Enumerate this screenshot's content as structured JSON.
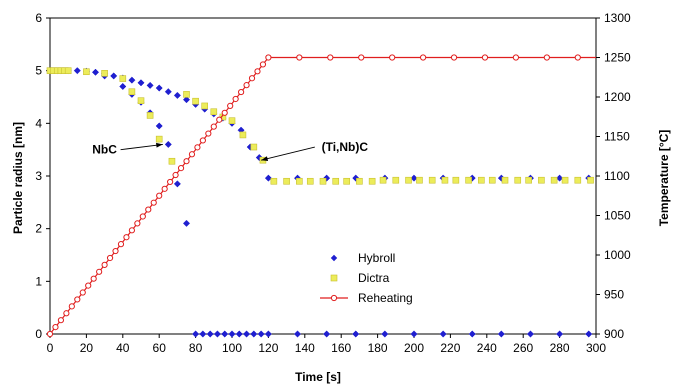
{
  "chart_data": {
    "type": "scatter",
    "title": "",
    "xlabel": "Time [s]",
    "ylabel": "Particle radius [nm]",
    "y2label": "Temperature [°C]",
    "xlim": [
      0,
      300
    ],
    "ylim": [
      0,
      6
    ],
    "y2lim": [
      900,
      1300
    ],
    "x_ticks": [
      "0",
      "20",
      "40",
      "60",
      "80",
      "100",
      "120",
      "140",
      "160",
      "180",
      "200",
      "220",
      "240",
      "260",
      "280",
      "300"
    ],
    "y_ticks": [
      "0",
      "1",
      "2",
      "3",
      "4",
      "5",
      "6"
    ],
    "y2_ticks": [
      "900",
      "950",
      "1000",
      "1050",
      "1100",
      "1150",
      "1200",
      "1250",
      "1300"
    ],
    "grid": "horizontal dashed",
    "legend_position": "lower-center",
    "series": [
      {
        "name": "Hybroll",
        "axis": "left",
        "marker": "diamond",
        "color": "#1f1fd0",
        "x": [
          0,
          2,
          4,
          6,
          8,
          10,
          15,
          20,
          25,
          30,
          35,
          40,
          45,
          50,
          55,
          60,
          65,
          70,
          75,
          80,
          85,
          90,
          95,
          100,
          105,
          110,
          115,
          120,
          136,
          152,
          168,
          184,
          200,
          216,
          232,
          248,
          264,
          280,
          296,
          30,
          40,
          45,
          50,
          55,
          60,
          65,
          70,
          75,
          80,
          84,
          88,
          92,
          96,
          100,
          104,
          108,
          112,
          116,
          120,
          136,
          152,
          168,
          184,
          200,
          216,
          232,
          248,
          264,
          280,
          296
        ],
        "y": [
          5.0,
          5.0,
          5.0,
          5.0,
          5.0,
          5.0,
          5.0,
          4.99,
          4.97,
          4.94,
          4.9,
          4.86,
          4.82,
          4.77,
          4.72,
          4.67,
          4.6,
          4.53,
          4.45,
          4.36,
          4.27,
          4.18,
          4.1,
          4.0,
          3.87,
          3.55,
          3.35,
          2.96,
          2.96,
          2.96,
          2.96,
          2.96,
          2.96,
          2.96,
          2.96,
          2.96,
          2.96,
          2.96,
          2.96,
          4.9,
          4.7,
          4.55,
          4.4,
          4.2,
          3.95,
          3.6,
          2.85,
          2.1,
          0,
          0,
          0,
          0,
          0,
          0,
          0,
          0,
          0,
          0,
          0,
          0,
          0,
          0,
          0,
          0,
          0,
          0,
          0,
          0,
          0,
          0
        ]
      },
      {
        "name": "Dictra",
        "axis": "left",
        "marker": "square",
        "color": "#ecec5a",
        "x": [
          0,
          2,
          4,
          6,
          8,
          10,
          20,
          30,
          40,
          45,
          50,
          55,
          60,
          67,
          75,
          80,
          85,
          90,
          95,
          100,
          106,
          112,
          117,
          123,
          130,
          137,
          143,
          150,
          157,
          163,
          170,
          177,
          183,
          190,
          197,
          203,
          210,
          217,
          223,
          230,
          237,
          243,
          250,
          257,
          263,
          270,
          277,
          283,
          290,
          297
        ],
        "y": [
          5.0,
          5.0,
          5.0,
          5.0,
          5.0,
          5.0,
          4.98,
          4.95,
          4.85,
          4.6,
          4.43,
          4.15,
          3.7,
          3.28,
          4.55,
          4.42,
          4.33,
          4.22,
          4.12,
          4.05,
          3.78,
          3.55,
          3.3,
          2.9,
          2.9,
          2.9,
          2.9,
          2.9,
          2.9,
          2.9,
          2.9,
          2.9,
          2.92,
          2.92,
          2.92,
          2.92,
          2.92,
          2.92,
          2.92,
          2.92,
          2.92,
          2.92,
          2.92,
          2.92,
          2.92,
          2.92,
          2.92,
          2.92,
          2.92,
          2.92
        ]
      },
      {
        "name": "Reheating",
        "axis": "right",
        "marker": "circle",
        "color": "#e01e1e",
        "x": [
          0,
          120,
          300
        ],
        "y": [
          900,
          1250,
          1250
        ],
        "marker_x_step_ramp": 3,
        "marker_x_step_plateau": 17
      }
    ],
    "annotations": [
      {
        "text": "NbC",
        "x": 62,
        "y": 3.6,
        "label_x": 30,
        "label_y": 3.5
      },
      {
        "text": "(Ti,Nb)C",
        "x": 116,
        "y": 3.3,
        "label_x": 162,
        "label_y": 3.55
      }
    ],
    "colors": {
      "grid": "#000000",
      "axis": "#000000",
      "background": "#ffffff"
    }
  }
}
